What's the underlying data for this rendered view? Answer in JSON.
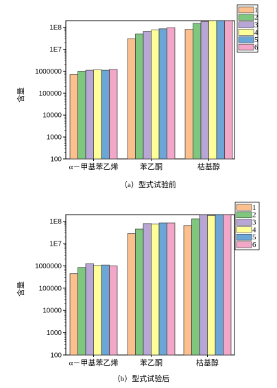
{
  "colors": [
    "#FCC08E",
    "#7FC77F",
    "#B7A6D6",
    "#FFFF99",
    "#6BA6D6",
    "#F2A6C8"
  ],
  "chart_data": [
    {
      "type": "bar",
      "caption": "（a）型式试验前",
      "ylabel": "含量",
      "yscale": "log",
      "ylim": [
        100,
        200000000
      ],
      "yticks": [
        "100",
        "1000",
        "10000",
        "100000",
        "1000000",
        "1E7",
        "1E8"
      ],
      "categories": [
        "α－甲基苯乙烯",
        "苯乙酮",
        "枯基醇"
      ],
      "legend": {
        "position": "top-right",
        "labels": [
          "1",
          "2",
          "3",
          "4",
          "5",
          "6"
        ]
      },
      "series": [
        {
          "name": "1",
          "values": [
            700000,
            30000000,
            80000000
          ]
        },
        {
          "name": "2",
          "values": [
            1000000,
            50000000,
            150000000
          ]
        },
        {
          "name": "3",
          "values": [
            1100000,
            65000000,
            180000000
          ]
        },
        {
          "name": "4",
          "values": [
            1150000,
            75000000,
            200000000
          ]
        },
        {
          "name": "5",
          "values": [
            1100000,
            85000000,
            200000000
          ]
        },
        {
          "name": "6",
          "values": [
            1200000,
            95000000,
            200000000
          ]
        }
      ]
    },
    {
      "type": "bar",
      "caption": "（b）型式试验后",
      "ylabel": "含量",
      "yscale": "log",
      "ylim": [
        100,
        200000000
      ],
      "yticks": [
        "100",
        "1000",
        "10000",
        "100000",
        "1000000",
        "1E7",
        "1E8"
      ],
      "categories": [
        "α－甲基苯乙烯",
        "苯乙酮",
        "枯基醇"
      ],
      "legend": {
        "position": "top-right",
        "labels": [
          "1",
          "2",
          "3",
          "4",
          "5",
          "6"
        ]
      },
      "series": [
        {
          "name": "1",
          "values": [
            450000,
            28000000,
            65000000
          ]
        },
        {
          "name": "2",
          "values": [
            850000,
            45000000,
            130000000
          ]
        },
        {
          "name": "3",
          "values": [
            1250000,
            80000000,
            200000000
          ]
        },
        {
          "name": "4",
          "values": [
            1050000,
            75000000,
            180000000
          ]
        },
        {
          "name": "5",
          "values": [
            1100000,
            85000000,
            200000000
          ]
        },
        {
          "name": "6",
          "values": [
            1000000,
            85000000,
            200000000
          ]
        }
      ]
    }
  ]
}
